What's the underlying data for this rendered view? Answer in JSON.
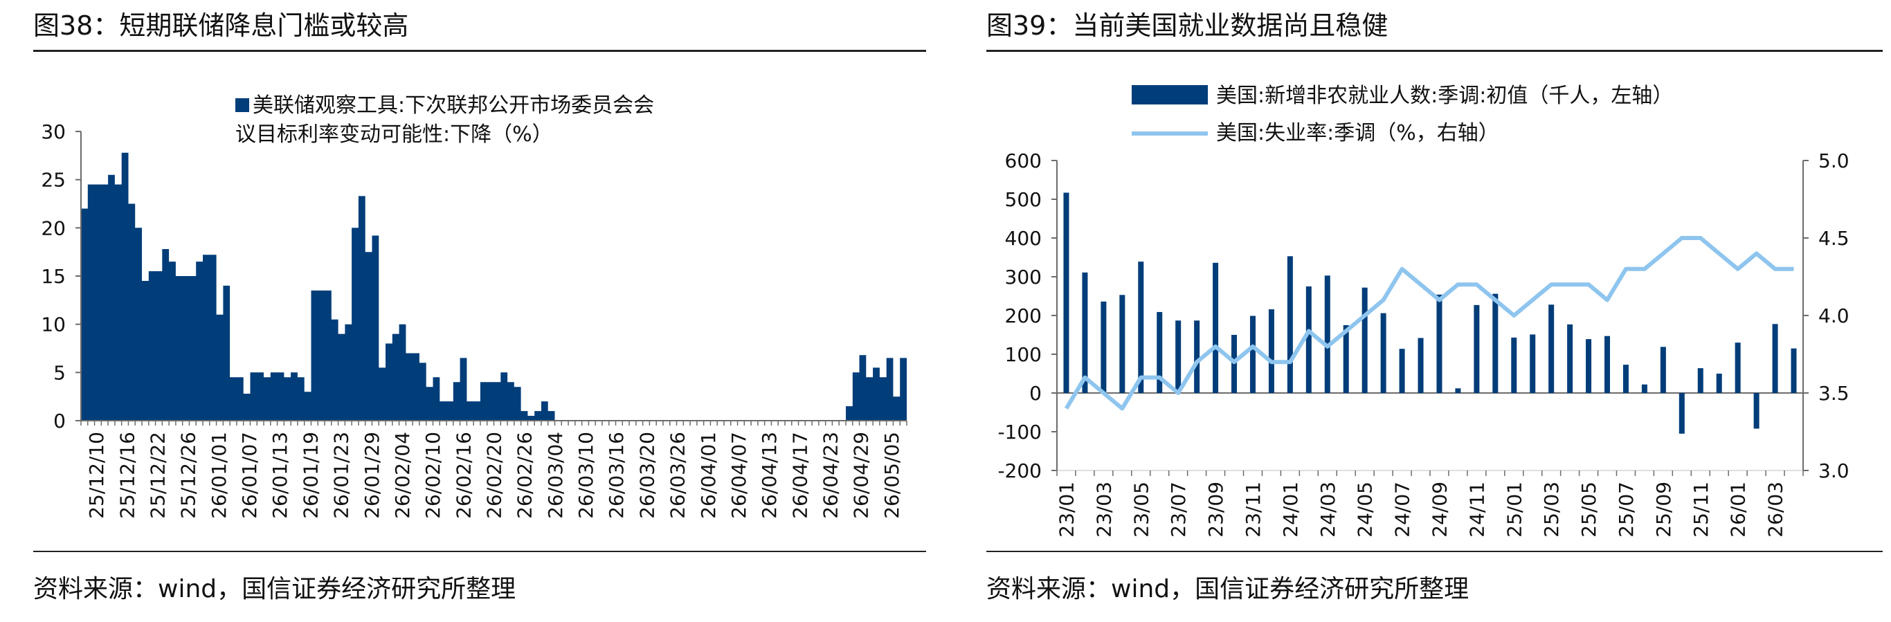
{
  "charts": [
    {
      "title": "图38：短期联储降息门槛或较高",
      "source": "资料来源：wind，国信证券经济研究所整理"
    },
    {
      "title": "图39：当前美国就业数据尚且稳健",
      "source": "资料来源：wind，国信证券经济研究所整理"
    }
  ],
  "colors": {
    "bar": "#003D79",
    "line": "#8EC5EE",
    "axis": "#6b6b6b",
    "text": "#111111"
  },
  "chart_data": [
    {
      "type": "area",
      "legend": {
        "line1": "美联储观察工具:下次联邦公开市场委员会会",
        "line2": "议目标利率变动可能性:下降（%）",
        "placement": "top-center"
      },
      "ylim": [
        0,
        30
      ],
      "yticks": [
        0,
        5,
        10,
        15,
        20,
        25,
        30
      ],
      "xtick_labels": [
        "25/12/10",
        "25/12/16",
        "25/12/22",
        "25/12/26",
        "26/01/01",
        "26/01/07",
        "26/01/13",
        "26/01/19",
        "26/01/23",
        "26/01/29",
        "26/02/04",
        "26/02/10",
        "26/02/16",
        "26/02/20",
        "26/02/26",
        "26/03/04",
        "26/03/10",
        "26/03/16",
        "26/03/20",
        "26/03/26",
        "26/04/01",
        "26/04/07",
        "26/04/13",
        "26/04/17",
        "26/04/23",
        "26/04/29",
        "26/05/05"
      ],
      "values": [
        22,
        24.5,
        24.5,
        24.5,
        25.5,
        24.5,
        27.8,
        22.5,
        20,
        14.5,
        15.5,
        15.5,
        17.8,
        16.5,
        15,
        15,
        15,
        16.5,
        17.2,
        17.2,
        11,
        14,
        4.5,
        4.5,
        2.8,
        5,
        5,
        4.5,
        5,
        5,
        4.5,
        5,
        4.5,
        3,
        13.5,
        13.5,
        13.5,
        10.5,
        9,
        10,
        20,
        23.3,
        17.5,
        19.2,
        5.5,
        8,
        9,
        10,
        7,
        7,
        6,
        3.5,
        4.5,
        2,
        2,
        4,
        6.5,
        2,
        2,
        4,
        4,
        4,
        5,
        4,
        3.5,
        1,
        0.5,
        1,
        2,
        1,
        0,
        0,
        0,
        0,
        0,
        0,
        0,
        0,
        0,
        0,
        0,
        0,
        0,
        0,
        0,
        0,
        0,
        0,
        0,
        0,
        0,
        0,
        0,
        0,
        0,
        0,
        0,
        0,
        0,
        0,
        0,
        0,
        0,
        0,
        0,
        0,
        0,
        0,
        0,
        0,
        0,
        0,
        0,
        1.5,
        5,
        6.8,
        4.5,
        5.5,
        4.5,
        6.5,
        2.5,
        6.5
      ]
    },
    {
      "type": "bar+line",
      "legend": [
        {
          "label": "美国:新增非农就业人数:季调:初值（千人，左轴）",
          "kind": "bar"
        },
        {
          "label": "美国:失业率:季调（%，右轴）",
          "kind": "line"
        }
      ],
      "ylim_left": [
        -200,
        600
      ],
      "yticks_left": [
        -200,
        -100,
        0,
        100,
        200,
        300,
        400,
        500,
        600
      ],
      "ylim_right": [
        3.0,
        5.0
      ],
      "yticks_right": [
        "3.0",
        "3.5",
        "4.0",
        "4.5",
        "5.0"
      ],
      "xtick_labels": [
        "23/01",
        "23/03",
        "23/05",
        "23/07",
        "23/09",
        "23/11",
        "24/01",
        "24/03",
        "24/05",
        "24/07",
        "24/09",
        "24/11",
        "25/01",
        "25/03",
        "25/05",
        "25/07",
        "25/09",
        "25/11",
        "26/01",
        "26/03"
      ],
      "payrolls": [
        517,
        311,
        236,
        253,
        339,
        209,
        187,
        187,
        336,
        150,
        199,
        216,
        353,
        275,
        303,
        175,
        272,
        206,
        114,
        142,
        254,
        12,
        227,
        256,
        143,
        151,
        228,
        177,
        139,
        147,
        73,
        22,
        119,
        -105,
        64,
        50,
        130,
        -92,
        178,
        115
      ],
      "unemployment": [
        3.4,
        3.6,
        3.5,
        3.4,
        3.6,
        3.6,
        3.5,
        3.7,
        3.8,
        3.7,
        3.8,
        3.7,
        3.7,
        3.9,
        3.8,
        3.9,
        4.0,
        4.1,
        4.3,
        4.2,
        4.1,
        4.2,
        4.2,
        4.1,
        4.0,
        4.1,
        4.2,
        4.2,
        4.2,
        4.1,
        4.3,
        4.3,
        4.4,
        4.5,
        4.5,
        4.4,
        4.3,
        4.4,
        4.3,
        4.3
      ]
    }
  ]
}
